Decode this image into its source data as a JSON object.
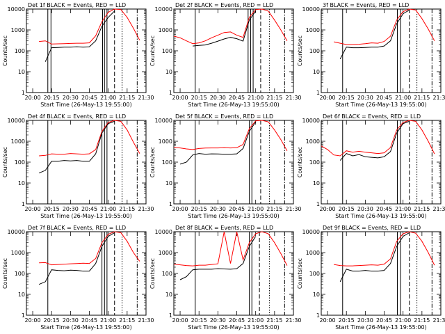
{
  "chart_data": {
    "type": "line",
    "ylabel": "Counts/sec",
    "xlabel": "Start Time (26-May-13 19:55:00)",
    "xlim": [
      "20:00",
      "21:30"
    ],
    "ylim": [
      1,
      10000
    ],
    "yscale": "log",
    "x_ticks": [
      "20:00",
      "20:15",
      "20:30",
      "20:45",
      "21:00",
      "21:15",
      "21:30"
    ],
    "y_ticks": [
      "1",
      "10",
      "100",
      "1000",
      "10000"
    ],
    "x_minutes": [
      0,
      5,
      10,
      15,
      20,
      25,
      30,
      35,
      40,
      45,
      50,
      55,
      60,
      65,
      70,
      75,
      80,
      85,
      90
    ],
    "series_colors": {
      "events": "#000000",
      "lld": "#ff0000"
    },
    "panels": [
      {
        "title": "Det 1f BLACK = Events, RED = LLD",
        "events": [
          null,
          null,
          null,
          30,
          140,
          145,
          150,
          150,
          155,
          150,
          155,
          300,
          1500,
          4000,
          8000,
          null,
          null,
          null,
          null
        ],
        "lld": [
          null,
          null,
          280,
          300,
          210,
          215,
          220,
          225,
          230,
          230,
          240,
          520,
          2500,
          7000,
          10000,
          9500,
          4000,
          1200,
          320
        ],
        "vlines": [
          {
            "t": 17,
            "s": "solid"
          },
          {
            "t": 19.5,
            "s": "solid"
          },
          {
            "t": 60.5,
            "s": "solid"
          },
          {
            "t": 62,
            "s": "solid"
          },
          {
            "t": 64,
            "s": "solid"
          },
          {
            "t": 70,
            "s": "dashed"
          },
          {
            "t": 76,
            "s": "dotted"
          },
          {
            "t": 88,
            "s": "dashdot"
          }
        ]
      },
      {
        "title": "Det 2f BLACK = Events, RED = LLD",
        "events": [
          null,
          null,
          null,
          170,
          180,
          190,
          230,
          290,
          370,
          440,
          380,
          290,
          3000,
          8000,
          null,
          null,
          null,
          null,
          null
        ],
        "lld": [
          500,
          420,
          300,
          220,
          240,
          300,
          420,
          560,
          750,
          800,
          560,
          440,
          4000,
          9500,
          10000,
          8000,
          3000,
          1000,
          300
        ],
        "vlines": [
          {
            "t": 17,
            "s": "solid"
          },
          {
            "t": 59,
            "s": "solid"
          },
          {
            "t": 61,
            "s": "solid"
          },
          {
            "t": 63,
            "s": "solid"
          },
          {
            "t": 69,
            "s": "dashed"
          },
          {
            "t": 76,
            "s": "dotted"
          },
          {
            "t": 88,
            "s": "dashdot"
          }
        ]
      },
      {
        "title": "3f BLACK = Events, RED = LLD",
        "events": [
          null,
          null,
          null,
          40,
          150,
          140,
          140,
          145,
          150,
          150,
          170,
          300,
          2000,
          6000,
          9000,
          null,
          null,
          null,
          null
        ],
        "lld": [
          null,
          null,
          270,
          230,
          200,
          200,
          205,
          220,
          240,
          230,
          280,
          500,
          3000,
          7500,
          10000,
          9000,
          3500,
          1100,
          300
        ],
        "vlines": [
          {
            "t": 17,
            "s": "solid"
          },
          {
            "t": 60.5,
            "s": "solid"
          },
          {
            "t": 63,
            "s": "solid"
          },
          {
            "t": 70,
            "s": "dashed"
          },
          {
            "t": 76,
            "s": "dotted"
          },
          {
            "t": 88,
            "s": "dashdot"
          }
        ]
      },
      {
        "title": "Det 4f BLACK = Events, RED = LLD",
        "events": [
          null,
          null,
          30,
          40,
          110,
          110,
          120,
          115,
          120,
          110,
          110,
          250,
          2500,
          7000,
          9000,
          null,
          null,
          null,
          null
        ],
        "lld": [
          null,
          null,
          200,
          210,
          250,
          240,
          240,
          260,
          250,
          240,
          250,
          400,
          3000,
          8000,
          10000,
          9000,
          3500,
          900,
          260
        ],
        "vlines": [
          {
            "t": 17,
            "s": "solid"
          },
          {
            "t": 60,
            "s": "solid"
          },
          {
            "t": 62,
            "s": "solid"
          },
          {
            "t": 64,
            "s": "solid"
          },
          {
            "t": 70,
            "s": "dashed"
          },
          {
            "t": 76,
            "s": "dotted"
          },
          {
            "t": 88,
            "s": "dashdot"
          }
        ]
      },
      {
        "title": "Det 5f BLACK = Events, RED = LLD",
        "events": [
          null,
          80,
          100,
          220,
          260,
          240,
          250,
          245,
          240,
          240,
          250,
          450,
          3000,
          8500,
          null,
          null,
          null,
          null,
          null
        ],
        "lld": [
          500,
          480,
          430,
          400,
          450,
          470,
          480,
          480,
          490,
          480,
          490,
          700,
          4000,
          9500,
          10000,
          8500,
          3500,
          1200,
          350
        ],
        "vlines": [
          {
            "t": 17,
            "s": "solid"
          },
          {
            "t": 60,
            "s": "solid"
          },
          {
            "t": 62,
            "s": "solid"
          },
          {
            "t": 69,
            "s": "dashed"
          },
          {
            "t": 76,
            "s": "dotted"
          },
          {
            "t": 88,
            "s": "dashdot"
          }
        ]
      },
      {
        "title": "Det 6f BLACK = Events, RED = LLD",
        "events": [
          null,
          null,
          null,
          120,
          260,
          200,
          230,
          180,
          170,
          160,
          180,
          320,
          2500,
          7000,
          9000,
          null,
          null,
          null,
          null
        ],
        "lld": [
          600,
          400,
          220,
          200,
          350,
          300,
          330,
          300,
          280,
          260,
          280,
          500,
          3500,
          8000,
          10000,
          9000,
          3500,
          1000,
          250
        ],
        "vlines": [
          {
            "t": 17,
            "s": "solid"
          },
          {
            "t": 60.5,
            "s": "solid"
          },
          {
            "t": 63,
            "s": "solid"
          },
          {
            "t": 70,
            "s": "dashed"
          },
          {
            "t": 76,
            "s": "dotted"
          },
          {
            "t": 88,
            "s": "dashdot"
          }
        ]
      },
      {
        "title": "Det 7f BLACK = Events, RED = LLD",
        "events": [
          null,
          null,
          30,
          40,
          150,
          140,
          135,
          145,
          140,
          130,
          130,
          300,
          2000,
          6000,
          9000,
          null,
          null,
          null,
          null
        ],
        "lld": [
          null,
          null,
          320,
          330,
          260,
          270,
          280,
          290,
          300,
          310,
          300,
          520,
          3000,
          7500,
          10000,
          9000,
          3500,
          1000,
          380
        ],
        "vlines": [
          {
            "t": 17,
            "s": "solid"
          },
          {
            "t": 60,
            "s": "solid"
          },
          {
            "t": 62,
            "s": "solid"
          },
          {
            "t": 64,
            "s": "solid"
          },
          {
            "t": 70,
            "s": "dashed"
          },
          {
            "t": 76,
            "s": "dotted"
          },
          {
            "t": 88,
            "s": "dashdot"
          }
        ]
      },
      {
        "title": "Det 8f BLACK = Events, RED = LLD",
        "events": [
          null,
          50,
          70,
          150,
          160,
          160,
          160,
          170,
          165,
          160,
          170,
          300,
          2000,
          6000,
          null,
          null,
          null,
          null,
          null
        ],
        "lld": [
          280,
          260,
          240,
          230,
          250,
          250,
          270,
          290,
          10000,
          300,
          10000,
          450,
          3000,
          8000,
          10000,
          8000,
          3000,
          900,
          240
        ],
        "vlines": [
          {
            "t": 17,
            "s": "solid"
          },
          {
            "t": 60,
            "s": "solid"
          },
          {
            "t": 62,
            "s": "solid"
          },
          {
            "t": 68,
            "s": "dashed"
          },
          {
            "t": 76,
            "s": "dotted"
          },
          {
            "t": 88,
            "s": "dashdot"
          }
        ]
      },
      {
        "title": "Det 9f BLACK = Events, RED = LLD",
        "events": [
          null,
          null,
          null,
          40,
          160,
          130,
          130,
          140,
          130,
          130,
          140,
          300,
          2000,
          6000,
          9000,
          null,
          null,
          null,
          null
        ],
        "lld": [
          null,
          null,
          270,
          240,
          230,
          230,
          240,
          250,
          260,
          250,
          280,
          500,
          3500,
          8000,
          10000,
          8500,
          3500,
          1000,
          250
        ],
        "vlines": [
          {
            "t": 17,
            "s": "solid"
          },
          {
            "t": 60.5,
            "s": "solid"
          },
          {
            "t": 63,
            "s": "solid"
          },
          {
            "t": 70,
            "s": "dashed"
          },
          {
            "t": 76,
            "s": "dotted"
          },
          {
            "t": 88,
            "s": "dashdot"
          }
        ]
      }
    ]
  }
}
